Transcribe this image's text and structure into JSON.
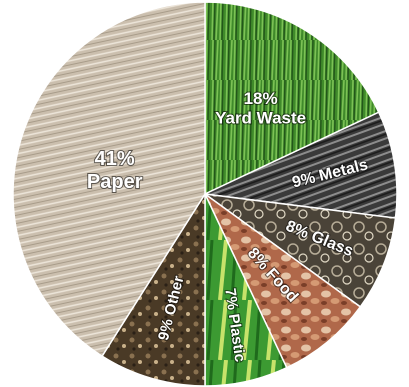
{
  "chart_data": {
    "type": "pie",
    "title": "",
    "slices": [
      {
        "pct": "18%",
        "name": "Yard Waste",
        "value": 18,
        "color": "#3f8a2a",
        "texture": "grass"
      },
      {
        "pct": "9%",
        "name": "Metals",
        "value": 9,
        "color": "#3a3a3a",
        "texture": "metal"
      },
      {
        "pct": "8%",
        "name": "Glass",
        "value": 8,
        "color": "#4a4338",
        "texture": "glass"
      },
      {
        "pct": "8%",
        "name": "Food",
        "value": 8,
        "color": "#b0684a",
        "texture": "food"
      },
      {
        "pct": "7%",
        "name": "Plastic",
        "value": 7,
        "color": "#3c9a32",
        "texture": "plastic"
      },
      {
        "pct": "9%",
        "name": "Other",
        "value": 9,
        "color": "#4a3a26",
        "texture": "other"
      },
      {
        "pct": "41%",
        "name": "Paper",
        "value": 41,
        "color": "#cbbfae",
        "texture": "paper"
      }
    ]
  }
}
